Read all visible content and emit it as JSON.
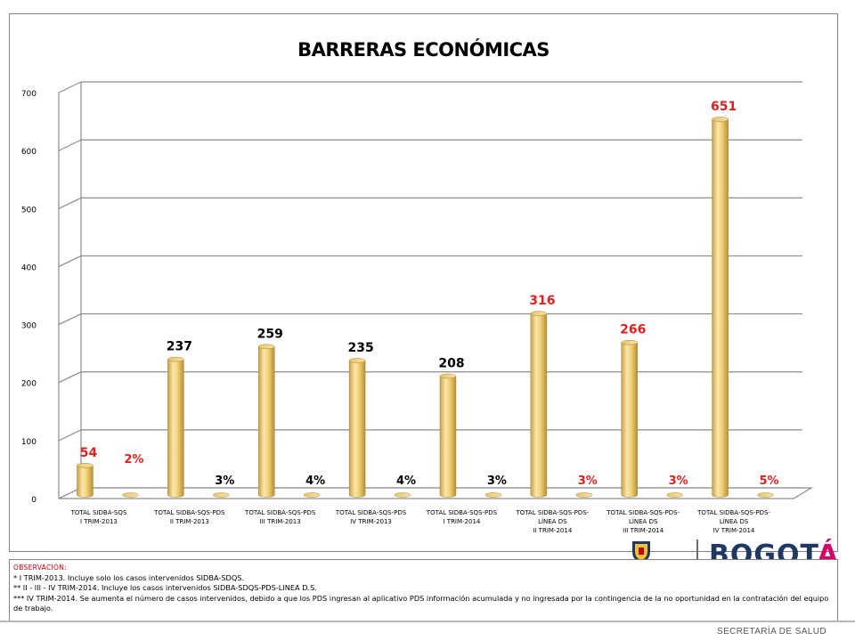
{
  "chart_data": {
    "type": "bar",
    "title": "BARRERAS ECONÓMICAS",
    "ylim": [
      0,
      700
    ],
    "yticks": [
      "0",
      "100",
      "200",
      "300",
      "400",
      "500",
      "600",
      "700"
    ],
    "grid": true,
    "categories": [
      [
        "TOTAL SIDBA-SQS",
        "I TRIM-2013"
      ],
      [
        "TOTAL SIDBA-SQS-PDS",
        "II TRIM-2013"
      ],
      [
        "TOTAL SIDBA-SQS-PDS",
        "III TRIM-2013"
      ],
      [
        "TOTAL SIDBA-SQS-PDS",
        "IV TRIM-2013"
      ],
      [
        "TOTAL SIDBA-SQS-PDS",
        "I TRIM-2014"
      ],
      [
        "TOTAL SIDBA-SQS-PDS-",
        "LÍNEA DS",
        "II TRIM-2014"
      ],
      [
        "TOTAL SIDBA-SQS-PDS-",
        "LÍNEA DS",
        "III TRIM-2014"
      ],
      [
        "TOTAL SIDBA-SQS-PDS-",
        "LÍNEA DS",
        "IV TRIM-2014"
      ]
    ],
    "series": [
      {
        "values": [
          54,
          237,
          259,
          235,
          208,
          316,
          266,
          651
        ],
        "labels": [
          "54",
          "237",
          "259",
          "235",
          "208",
          "316",
          "266",
          "651"
        ],
        "label_colors": [
          "#e01f1f",
          "#000000",
          "#000000",
          "#000000",
          "#000000",
          "#e01f1f",
          "#e01f1f",
          "#e01f1f"
        ]
      },
      {
        "values": [
          2,
          3,
          4,
          4,
          3,
          3,
          3,
          5
        ],
        "labels": [
          "2%",
          "3%",
          "4%",
          "4%",
          "3%",
          "3%",
          "3%",
          "5%"
        ],
        "label_colors": [
          "#e01f1f",
          "#000000",
          "#000000",
          "#000000",
          "#000000",
          "#e01f1f",
          "#e01f1f",
          "#e01f1f"
        ]
      }
    ],
    "bar_color": "#f2d27a"
  },
  "logo": {
    "text_main": "BOGOT",
    "text_accent": "Á"
  },
  "observation": {
    "title": "OBSERVACIÓN:",
    "lines": [
      "* I TRIM-2013. Incluye solo los casos intervenidos SIDBA-SDQS.",
      "** II - III - IV TRIM-2014. Incluye los casos intervenidos SIDBA-SDQS-PDS-LINEA D.S.",
      "*** IV TRIM-2014. Se aumenta el número de casos intervenidos, debido a que los PDS ingresan al aplicativo PDS información acumulada y no ingresada por la contingencia de la no oportunidad en la contratación del equipo de trabajo."
    ]
  },
  "footer": {
    "text": "SECRETARÍA DE SALUD"
  }
}
